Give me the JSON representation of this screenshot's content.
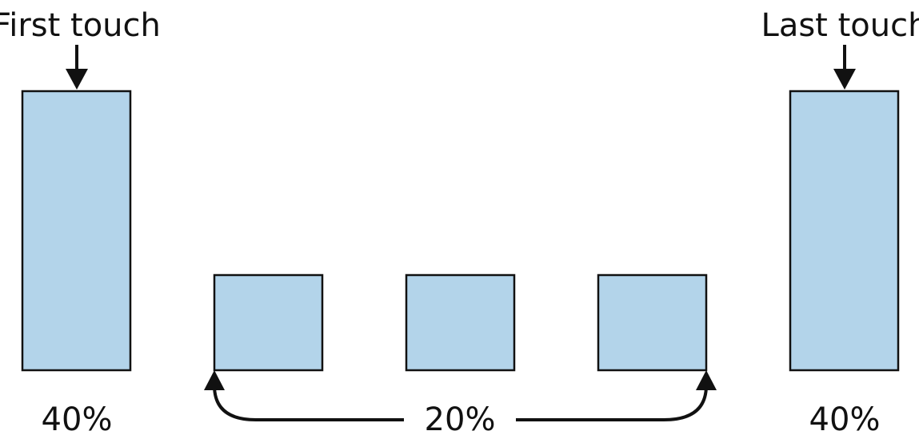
{
  "labels": {
    "first": "First touch",
    "last": "Last touch"
  },
  "percentages": {
    "first": "40%",
    "middle": "20%",
    "last": "40%"
  },
  "touchpoint_count": 5,
  "relative_heights": [
    1.0,
    0.34,
    0.34,
    0.34,
    1.0
  ],
  "colors": {
    "bar_fill": "#b3d4ea",
    "stroke": "#111111"
  }
}
